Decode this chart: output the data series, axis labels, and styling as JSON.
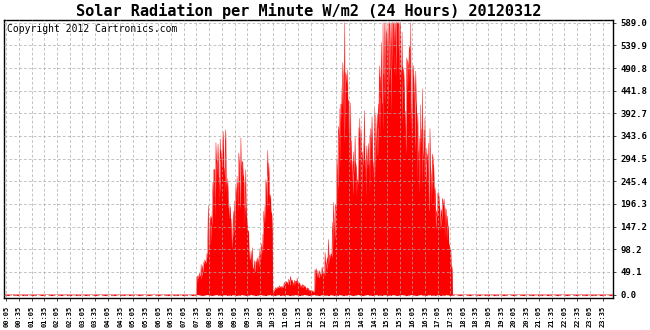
{
  "title": "Solar Radiation per Minute W/m2 (24 Hours) 20120312",
  "copyright": "Copyright 2012 Cartronics.com",
  "yticks": [
    0.0,
    49.1,
    98.2,
    147.2,
    196.3,
    245.4,
    294.5,
    343.6,
    392.7,
    441.8,
    490.8,
    539.9,
    589.0
  ],
  "ymax": 589.0,
  "fill_color": "#ff0000",
  "line_color": "#ff0000",
  "dashed_line_color": "#ff0000",
  "grid_color": "#aaaaaa",
  "background_color": "#ffffff",
  "title_fontsize": 11,
  "copyright_fontsize": 7,
  "xtick_start": 5,
  "xtick_step": 30,
  "xtick_count": 48
}
